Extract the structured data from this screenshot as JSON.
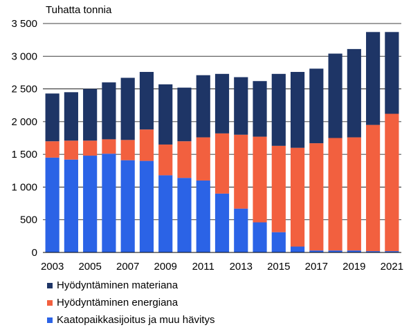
{
  "chart_data": {
    "type": "bar",
    "stacked": true,
    "unit_label": "Tuhatta tonnia",
    "title": "",
    "xlabel": "",
    "ylabel": "",
    "ylim": [
      0,
      3500
    ],
    "y_ticks": [
      0,
      500,
      1000,
      1500,
      2000,
      2500,
      3000,
      3500
    ],
    "y_tick_labels": [
      "0",
      "500",
      "1 000",
      "1 500",
      "2 000",
      "2 500",
      "3 000",
      "3 500"
    ],
    "categories": [
      "2003",
      "2004",
      "2005",
      "2006",
      "2007",
      "2008",
      "2009",
      "2010",
      "2011",
      "2012",
      "2013",
      "2014",
      "2015",
      "2016",
      "2017",
      "2018",
      "2019",
      "2020",
      "2021"
    ],
    "x_tick_labels": [
      "2003",
      "",
      "2005",
      "",
      "2007",
      "",
      "2009",
      "",
      "2011",
      "",
      "2013",
      "",
      "2015",
      "",
      "2017",
      "",
      "2019",
      "",
      "2021"
    ],
    "grid": true,
    "legend_position": "bottom",
    "series": [
      {
        "name": "Kaatopaikkasijoitus ja muu hävitys",
        "color": "#2b63e6",
        "values": [
          1450,
          1420,
          1480,
          1510,
          1410,
          1400,
          1180,
          1140,
          1100,
          900,
          670,
          460,
          310,
          90,
          30,
          30,
          30,
          20,
          20
        ]
      },
      {
        "name": "Hyödyntäminen energiana",
        "color": "#f2603f",
        "values": [
          250,
          290,
          230,
          220,
          310,
          480,
          470,
          560,
          660,
          920,
          1130,
          1310,
          1320,
          1510,
          1640,
          1720,
          1730,
          1930,
          2100
        ]
      },
      {
        "name": "Hyödyntäminen materiana",
        "color": "#1e3566",
        "values": [
          730,
          740,
          790,
          870,
          950,
          880,
          920,
          820,
          950,
          910,
          880,
          850,
          1100,
          1160,
          1140,
          1290,
          1350,
          1420,
          1250
        ]
      }
    ],
    "legend_order": [
      2,
      1,
      0
    ]
  }
}
